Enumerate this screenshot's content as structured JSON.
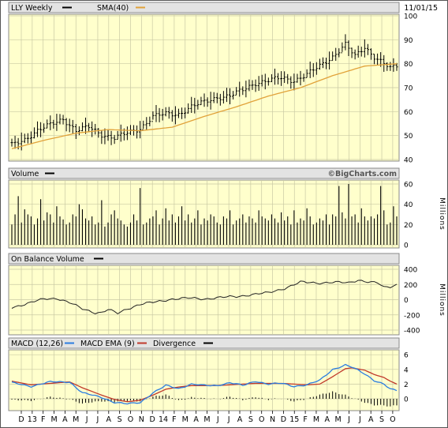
{
  "header": {
    "ticker_label": "LLY Weekly",
    "sma_label": "SMA(40)",
    "date": "11/01/15"
  },
  "colors": {
    "panel_bg": "#ffffcc",
    "grid": "#c9c9a4",
    "header_bg": "#e3e3e3",
    "sma": "#e1a23a",
    "macd": "#2b7de0",
    "ema": "#c0392b",
    "bars": "#000000"
  },
  "chart_data": [
    {
      "type": "line",
      "name": "price",
      "title": "LLY Weekly",
      "legend": [
        {
          "label": "LLY Weekly",
          "swatch": "#000000"
        },
        {
          "label": "SMA(40)",
          "swatch": "#e1a23a"
        }
      ],
      "x_ticks": [
        "D",
        "13",
        "F",
        "M",
        "A",
        "M",
        "J",
        "J",
        "A",
        "S",
        "O",
        "N",
        "D",
        "14",
        "F",
        "M",
        "A",
        "M",
        "J",
        "J",
        "A",
        "S",
        "O",
        "N",
        "D",
        "15",
        "F",
        "M",
        "A",
        "M",
        "J",
        "J",
        "A",
        "S",
        "O"
      ],
      "y_ticks": [
        100,
        90,
        80,
        70,
        60,
        50,
        40
      ],
      "ylim": [
        40,
        100
      ],
      "anchors_close": [
        [
          0,
          46
        ],
        [
          4,
          48.5
        ],
        [
          8,
          52
        ],
        [
          12,
          54.5
        ],
        [
          16,
          57
        ],
        [
          20,
          52
        ],
        [
          24,
          53.5
        ],
        [
          28,
          50.5
        ],
        [
          32,
          49
        ],
        [
          36,
          51
        ],
        [
          40,
          53
        ],
        [
          44,
          58
        ],
        [
          48,
          59
        ],
        [
          52,
          59
        ],
        [
          56,
          62
        ],
        [
          60,
          64
        ],
        [
          64,
          66
        ],
        [
          68,
          66.5
        ],
        [
          72,
          69
        ],
        [
          76,
          72
        ],
        [
          80,
          73
        ],
        [
          84,
          74
        ],
        [
          88,
          73
        ],
        [
          92,
          75.5
        ],
        [
          96,
          79
        ],
        [
          100,
          83
        ],
        [
          104,
          88
        ],
        [
          107,
          83
        ],
        [
          110,
          87
        ],
        [
          113,
          83
        ],
        [
          116,
          80
        ],
        [
          118,
          78
        ],
        [
          120,
          79
        ]
      ],
      "anchors_sma": [
        [
          0,
          44.5
        ],
        [
          10,
          48
        ],
        [
          20,
          51
        ],
        [
          30,
          52.5
        ],
        [
          40,
          52
        ],
        [
          50,
          53.5
        ],
        [
          60,
          58
        ],
        [
          70,
          62
        ],
        [
          80,
          66.5
        ],
        [
          90,
          70
        ],
        [
          100,
          75
        ],
        [
          110,
          79
        ],
        [
          120,
          80
        ]
      ]
    },
    {
      "type": "bar",
      "name": "volume",
      "title": "Volume",
      "watermark": "©BigCharts.com",
      "ylabel": "Millions",
      "y_ticks": [
        60,
        40,
        20,
        0
      ],
      "ylim": [
        0,
        60
      ],
      "values": [
        20,
        30,
        48,
        22,
        35,
        30,
        28,
        20,
        26,
        45,
        24,
        32,
        30,
        22,
        38,
        28,
        25,
        20,
        22,
        30,
        28,
        40,
        35,
        26,
        24,
        28,
        20,
        22,
        44,
        18,
        22,
        30,
        34,
        26,
        24,
        20,
        18,
        22,
        30,
        24,
        56,
        20,
        22,
        26,
        28,
        34,
        20,
        26,
        36,
        24,
        30,
        22,
        28,
        38,
        24,
        30,
        22,
        26,
        34,
        20,
        26,
        24,
        30,
        28,
        22,
        20,
        28,
        26,
        34,
        20,
        24,
        26,
        30,
        22,
        28,
        26,
        22,
        34,
        28,
        26,
        24,
        30,
        26,
        22,
        32,
        24,
        28,
        20,
        34,
        22,
        26,
        24,
        36,
        28,
        20,
        22,
        26,
        24,
        30,
        20,
        30,
        28,
        58,
        32,
        26,
        60,
        28,
        30,
        22,
        36,
        28,
        24,
        28,
        26,
        30,
        58,
        34,
        20,
        22,
        38,
        28
      ]
    },
    {
      "type": "line",
      "name": "obv",
      "title": "On Balance Volume",
      "ylabel": "Millions",
      "y_ticks": [
        400,
        200,
        0,
        -200,
        -400
      ],
      "ylim": [
        -400,
        400
      ],
      "anchors": [
        [
          0,
          -100
        ],
        [
          5,
          -50
        ],
        [
          10,
          10
        ],
        [
          14,
          20
        ],
        [
          18,
          -40
        ],
        [
          22,
          -120
        ],
        [
          26,
          -170
        ],
        [
          28,
          -170
        ],
        [
          30,
          -130
        ],
        [
          33,
          -180
        ],
        [
          36,
          -120
        ],
        [
          40,
          -60
        ],
        [
          45,
          -30
        ],
        [
          50,
          10
        ],
        [
          55,
          20
        ],
        [
          60,
          10
        ],
        [
          65,
          30
        ],
        [
          70,
          40
        ],
        [
          75,
          70
        ],
        [
          80,
          90
        ],
        [
          85,
          150
        ],
        [
          90,
          230
        ],
        [
          95,
          220
        ],
        [
          100,
          230
        ],
        [
          105,
          220
        ],
        [
          108,
          260
        ],
        [
          112,
          230
        ],
        [
          114,
          220
        ],
        [
          116,
          160
        ],
        [
          118,
          170
        ],
        [
          120,
          200
        ]
      ]
    },
    {
      "type": "line",
      "name": "macd",
      "title": "MACD (12,26)",
      "legend": [
        {
          "label": "MACD (12,26)",
          "swatch": "#000000"
        },
        {
          "label": "MACD EMA (9)",
          "swatch": "#2b7de0"
        },
        {
          "label": "Divergence",
          "swatch": "#c0392b"
        },
        {
          "label": "",
          "swatch": "#000000"
        }
      ],
      "y_ticks": [
        6,
        4,
        2,
        0
      ],
      "ylim": [
        -1,
        6
      ],
      "anchors_macd": [
        [
          0,
          2.2
        ],
        [
          6,
          1.7
        ],
        [
          12,
          2.3
        ],
        [
          18,
          2.3
        ],
        [
          22,
          0.8
        ],
        [
          28,
          0.2
        ],
        [
          32,
          -0.5
        ],
        [
          36,
          -0.7
        ],
        [
          40,
          -0.5
        ],
        [
          44,
          0.8
        ],
        [
          48,
          1.8
        ],
        [
          52,
          1.4
        ],
        [
          56,
          2.0
        ],
        [
          60,
          1.8
        ],
        [
          64,
          1.8
        ],
        [
          68,
          2.2
        ],
        [
          72,
          1.8
        ],
        [
          76,
          2.4
        ],
        [
          80,
          2.0
        ],
        [
          84,
          2.1
        ],
        [
          88,
          1.7
        ],
        [
          92,
          1.9
        ],
        [
          96,
          2.5
        ],
        [
          100,
          4.0
        ],
        [
          104,
          4.6
        ],
        [
          106,
          4.3
        ],
        [
          110,
          3.4
        ],
        [
          113,
          2.5
        ],
        [
          116,
          2.0
        ],
        [
          118,
          1.3
        ],
        [
          120,
          1.1
        ]
      ],
      "anchors_ema": [
        [
          0,
          2.4
        ],
        [
          6,
          1.9
        ],
        [
          12,
          2.1
        ],
        [
          18,
          2.3
        ],
        [
          22,
          1.5
        ],
        [
          28,
          0.5
        ],
        [
          32,
          -0.1
        ],
        [
          36,
          -0.4
        ],
        [
          40,
          -0.2
        ],
        [
          44,
          0.5
        ],
        [
          48,
          1.3
        ],
        [
          52,
          1.6
        ],
        [
          56,
          1.8
        ],
        [
          60,
          1.8
        ],
        [
          64,
          1.8
        ],
        [
          68,
          1.9
        ],
        [
          72,
          2.0
        ],
        [
          76,
          2.1
        ],
        [
          80,
          2.1
        ],
        [
          84,
          2.1
        ],
        [
          88,
          2.0
        ],
        [
          92,
          1.9
        ],
        [
          96,
          2.0
        ],
        [
          100,
          3.0
        ],
        [
          104,
          4.1
        ],
        [
          106,
          4.2
        ],
        [
          110,
          3.9
        ],
        [
          113,
          3.3
        ],
        [
          116,
          2.9
        ],
        [
          118,
          2.4
        ],
        [
          120,
          2.0
        ]
      ]
    }
  ]
}
